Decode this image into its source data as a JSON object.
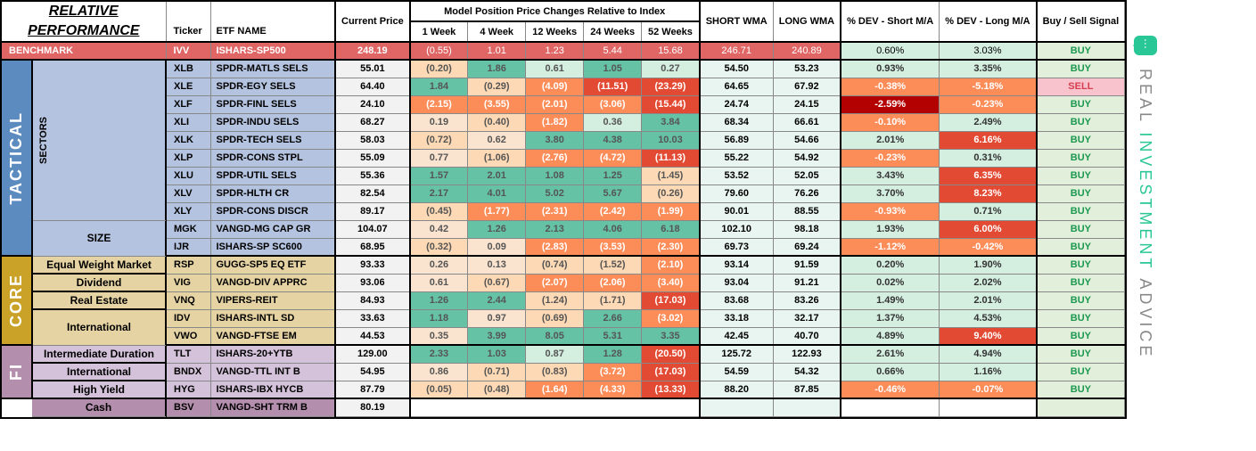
{
  "title": [
    "RELATIVE",
    "PERFORMANCE"
  ],
  "logo": {
    "text_gray": "REAL ",
    "text_green": "INVESTMENT",
    "text_gray2": " ADVICE"
  },
  "headers": {
    "ticker": "Ticker",
    "etf": "ETF NAME",
    "price": "Current Price",
    "model_span": "Model Position Price Changes Relative to Index",
    "w1": "1 Week",
    "w4": "4 Week",
    "w12": "12 Weeks",
    "w24": "24 Weeks",
    "w52": "52 Weeks",
    "swma": "SHORT WMA",
    "lwma": "LONG WMA",
    "devs": "% DEV - Short M/A",
    "devl": "% DEV - Long M/A",
    "sig": "Buy / Sell Signal"
  },
  "colors": {
    "bg_pos_strong": "#66c2a5",
    "bg_pos_mid": "#abdda4",
    "bg_pos_light": "#d4eee0",
    "bg_neg_light": "#fdd9b5",
    "bg_neg_mid": "#fc8d59",
    "bg_neg_strong": "#e34a33",
    "bg_neg_vstrong": "#b30000",
    "bg_neutral": "#fbe4cf",
    "bg_benchmark": "#e06666",
    "bg_sector_row": "#cfd8ea",
    "bg_sector_lbl": "#b4c3df",
    "bg_core_row": "#e6d3a3",
    "bg_core_lbl": "#c9a227",
    "bg_fi_row": "#d4c2da",
    "bg_fi_lbl": "#b48ead",
    "bg_cash": "#b48ead",
    "bg_wma": "#e8f5f0",
    "bg_price": "#f2f2f2",
    "bg_sig": "#e2efda",
    "bg_sig_sell": "#f8c3cc",
    "tactical": "#5b8bbf",
    "core": "#c9a227",
    "fi": "#b48ead"
  },
  "benchmark": {
    "label": "BENCHMARK",
    "ticker": "IVV",
    "name": "ISHARS-SP500",
    "price": "248.19",
    "w": [
      "(0.55)",
      "1.01",
      "1.23",
      "5.44",
      "15.68"
    ],
    "swma": "246.71",
    "lwma": "240.89",
    "devs": "0.60%",
    "devl": "3.03%",
    "sig": "BUY"
  },
  "sections": [
    {
      "id": "tactical",
      "label": "TACTICAL",
      "color": "#5b8bbf",
      "groups": [
        {
          "label": "SECTORS",
          "vertical": true,
          "bg": "#b4c3df",
          "rows": [
            {
              "ticker": "XLB",
              "name": "SPDR-MATLS SELS",
              "price": "55.01",
              "w": [
                [
                  "(0.20)",
                  "nL"
                ],
                [
                  "1.86",
                  "pS"
                ],
                [
                  "0.61",
                  "pL"
                ],
                [
                  "1.05",
                  "pS"
                ],
                [
                  "0.27",
                  "pL"
                ]
              ],
              "swma": "54.50",
              "lwma": "53.23",
              "devs": [
                "0.93%",
                "pL"
              ],
              "devl": [
                "3.35%",
                "pL"
              ],
              "sig": "BUY"
            },
            {
              "ticker": "XLE",
              "name": "SPDR-EGY SELS",
              "price": "64.40",
              "w": [
                [
                  "1.84",
                  "pS"
                ],
                [
                  "(0.29)",
                  "nL"
                ],
                [
                  "(4.09)",
                  "nM"
                ],
                [
                  "(11.51)",
                  "nS"
                ],
                [
                  "(23.29)",
                  "nS"
                ]
              ],
              "swma": "64.65",
              "lwma": "67.92",
              "devs": [
                "-0.38%",
                "nM"
              ],
              "devl": [
                "-5.18%",
                "nM"
              ],
              "sig": "SELL"
            },
            {
              "ticker": "XLF",
              "name": "SPDR-FINL SELS",
              "price": "24.10",
              "w": [
                [
                  "(2.15)",
                  "nM"
                ],
                [
                  "(3.55)",
                  "nM"
                ],
                [
                  "(2.01)",
                  "nM"
                ],
                [
                  "(3.06)",
                  "nM"
                ],
                [
                  "(15.44)",
                  "nS"
                ]
              ],
              "swma": "24.74",
              "lwma": "24.15",
              "devs": [
                "-2.59%",
                "nVS"
              ],
              "devl": [
                "-0.23%",
                "nM"
              ],
              "sig": "BUY"
            },
            {
              "ticker": "XLI",
              "name": "SPDR-INDU SELS",
              "price": "68.27",
              "w": [
                [
                  "0.19",
                  "nt"
                ],
                [
                  "(0.40)",
                  "nL"
                ],
                [
                  "(1.82)",
                  "nM"
                ],
                [
                  "0.36",
                  "pL"
                ],
                [
                  "3.84",
                  "pS"
                ]
              ],
              "swma": "68.34",
              "lwma": "66.61",
              "devs": [
                "-0.10%",
                "nM"
              ],
              "devl": [
                "2.49%",
                "pL"
              ],
              "sig": "BUY"
            },
            {
              "ticker": "XLK",
              "name": "SPDR-TECH SELS",
              "price": "58.03",
              "w": [
                [
                  "(0.72)",
                  "nL"
                ],
                [
                  "0.62",
                  "nt"
                ],
                [
                  "3.80",
                  "pS"
                ],
                [
                  "4.38",
                  "pS"
                ],
                [
                  "10.03",
                  "pS"
                ]
              ],
              "swma": "56.89",
              "lwma": "54.66",
              "devs": [
                "2.01%",
                "pL"
              ],
              "devl": [
                "6.16%",
                "nS"
              ],
              "sig": "BUY"
            },
            {
              "ticker": "XLP",
              "name": "SPDR-CONS STPL",
              "price": "55.09",
              "w": [
                [
                  "0.77",
                  "nt"
                ],
                [
                  "(1.06)",
                  "nL"
                ],
                [
                  "(2.76)",
                  "nM"
                ],
                [
                  "(4.72)",
                  "nM"
                ],
                [
                  "(11.13)",
                  "nS"
                ]
              ],
              "swma": "55.22",
              "lwma": "54.92",
              "devs": [
                "-0.23%",
                "nM"
              ],
              "devl": [
                "0.31%",
                "pL"
              ],
              "sig": "BUY"
            },
            {
              "ticker": "XLU",
              "name": "SPDR-UTIL SELS",
              "price": "55.36",
              "w": [
                [
                  "1.57",
                  "pS"
                ],
                [
                  "2.01",
                  "pS"
                ],
                [
                  "1.08",
                  "pS"
                ],
                [
                  "1.25",
                  "pS"
                ],
                [
                  "(1.45)",
                  "nL"
                ]
              ],
              "swma": "53.52",
              "lwma": "52.05",
              "devs": [
                "3.43%",
                "pL"
              ],
              "devl": [
                "6.35%",
                "nS"
              ],
              "sig": "BUY"
            },
            {
              "ticker": "XLV",
              "name": "SPDR-HLTH CR",
              "price": "82.54",
              "w": [
                [
                  "2.17",
                  "pS"
                ],
                [
                  "4.01",
                  "pS"
                ],
                [
                  "5.02",
                  "pS"
                ],
                [
                  "5.67",
                  "pS"
                ],
                [
                  "(0.26)",
                  "nL"
                ]
              ],
              "swma": "79.60",
              "lwma": "76.26",
              "devs": [
                "3.70%",
                "pL"
              ],
              "devl": [
                "8.23%",
                "nS"
              ],
              "sig": "BUY"
            },
            {
              "ticker": "XLY",
              "name": "SPDR-CONS DISCR",
              "price": "89.17",
              "w": [
                [
                  "(0.45)",
                  "nL"
                ],
                [
                  "(1.77)",
                  "nM"
                ],
                [
                  "(2.31)",
                  "nM"
                ],
                [
                  "(2.42)",
                  "nM"
                ],
                [
                  "(1.99)",
                  "nM"
                ]
              ],
              "swma": "90.01",
              "lwma": "88.55",
              "devs": [
                "-0.93%",
                "nM"
              ],
              "devl": [
                "0.71%",
                "pL"
              ],
              "sig": "BUY"
            }
          ]
        },
        {
          "label": "SIZE",
          "bg": "#b4c3df",
          "rows": [
            {
              "ticker": "MGK",
              "name": "VANGD-MG CAP GR",
              "price": "104.07",
              "w": [
                [
                  "0.42",
                  "nt"
                ],
                [
                  "1.26",
                  "pS"
                ],
                [
                  "2.13",
                  "pS"
                ],
                [
                  "4.06",
                  "pS"
                ],
                [
                  "6.18",
                  "pS"
                ]
              ],
              "swma": "102.10",
              "lwma": "98.18",
              "devs": [
                "1.93%",
                "pL"
              ],
              "devl": [
                "6.00%",
                "nS"
              ],
              "sig": "BUY"
            },
            {
              "ticker": "IJR",
              "name": "ISHARS-SP SC600",
              "price": "68.95",
              "w": [
                [
                  "(0.32)",
                  "nL"
                ],
                [
                  "0.09",
                  "nt"
                ],
                [
                  "(2.83)",
                  "nM"
                ],
                [
                  "(3.53)",
                  "nM"
                ],
                [
                  "(2.30)",
                  "nM"
                ]
              ],
              "swma": "69.73",
              "lwma": "69.24",
              "devs": [
                "-1.12%",
                "nM"
              ],
              "devl": [
                "-0.42%",
                "nM"
              ],
              "sig": "BUY"
            }
          ]
        }
      ]
    },
    {
      "id": "core",
      "label": "CORE",
      "color": "#c9a227",
      "groups": [
        {
          "label": "Equal Weight Market",
          "bg": "#e6d3a3",
          "rows": [
            {
              "ticker": "RSP",
              "name": "GUGG-SP5 EQ ETF",
              "price": "93.33",
              "w": [
                [
                  "0.26",
                  "nt"
                ],
                [
                  "0.13",
                  "nt"
                ],
                [
                  "(0.74)",
                  "nL"
                ],
                [
                  "(1.52)",
                  "nL"
                ],
                [
                  "(2.10)",
                  "nM"
                ]
              ],
              "swma": "93.14",
              "lwma": "91.59",
              "devs": [
                "0.20%",
                "pL"
              ],
              "devl": [
                "1.90%",
                "pL"
              ],
              "sig": "BUY"
            }
          ]
        },
        {
          "label": "Dividend",
          "bg": "#e6d3a3",
          "rows": [
            {
              "ticker": "VIG",
              "name": "VANGD-DIV APPRC",
              "price": "93.06",
              "w": [
                [
                  "0.61",
                  "nt"
                ],
                [
                  "(0.67)",
                  "nL"
                ],
                [
                  "(2.07)",
                  "nM"
                ],
                [
                  "(2.06)",
                  "nM"
                ],
                [
                  "(3.40)",
                  "nM"
                ]
              ],
              "swma": "93.04",
              "lwma": "91.21",
              "devs": [
                "0.02%",
                "pL"
              ],
              "devl": [
                "2.02%",
                "pL"
              ],
              "sig": "BUY"
            }
          ]
        },
        {
          "label": "Real Estate",
          "bg": "#e6d3a3",
          "rows": [
            {
              "ticker": "VNQ",
              "name": "VIPERS-REIT",
              "price": "84.93",
              "w": [
                [
                  "1.26",
                  "pS"
                ],
                [
                  "2.44",
                  "pS"
                ],
                [
                  "(1.24)",
                  "nL"
                ],
                [
                  "(1.71)",
                  "nL"
                ],
                [
                  "(17.03)",
                  "nS"
                ]
              ],
              "swma": "83.68",
              "lwma": "83.26",
              "devs": [
                "1.49%",
                "pL"
              ],
              "devl": [
                "2.01%",
                "pL"
              ],
              "sig": "BUY"
            }
          ]
        },
        {
          "label": "International",
          "bg": "#e6d3a3",
          "rows": [
            {
              "ticker": "IDV",
              "name": "ISHARS-INTL SD",
              "price": "33.63",
              "w": [
                [
                  "1.18",
                  "pS"
                ],
                [
                  "0.97",
                  "nt"
                ],
                [
                  "(0.69)",
                  "nL"
                ],
                [
                  "2.66",
                  "pS"
                ],
                [
                  "(3.02)",
                  "nM"
                ]
              ],
              "swma": "33.18",
              "lwma": "32.17",
              "devs": [
                "1.37%",
                "pL"
              ],
              "devl": [
                "4.53%",
                "pL"
              ],
              "sig": "BUY"
            },
            {
              "ticker": "VWO",
              "name": "VANGD-FTSE EM",
              "price": "44.53",
              "w": [
                [
                  "0.35",
                  "nt"
                ],
                [
                  "3.99",
                  "pS"
                ],
                [
                  "8.05",
                  "pS"
                ],
                [
                  "5.31",
                  "pS"
                ],
                [
                  "3.35",
                  "pS"
                ]
              ],
              "swma": "42.45",
              "lwma": "40.70",
              "devs": [
                "4.89%",
                "pL"
              ],
              "devl": [
                "9.40%",
                "nS"
              ],
              "sig": "BUY"
            }
          ]
        }
      ]
    },
    {
      "id": "fi",
      "label": "FI",
      "color": "#b48ead",
      "groups": [
        {
          "label": "Intermediate Duration",
          "bg": "#d4c2da",
          "rows": [
            {
              "ticker": "TLT",
              "name": "ISHARS-20+YTB",
              "price": "129.00",
              "w": [
                [
                  "2.33",
                  "pS"
                ],
                [
                  "1.03",
                  "pS"
                ],
                [
                  "0.87",
                  "pL"
                ],
                [
                  "1.28",
                  "pS"
                ],
                [
                  "(20.50)",
                  "nS"
                ]
              ],
              "swma": "125.72",
              "lwma": "122.93",
              "devs": [
                "2.61%",
                "pL"
              ],
              "devl": [
                "4.94%",
                "pL"
              ],
              "sig": "BUY"
            }
          ]
        },
        {
          "label": "International",
          "bg": "#d4c2da",
          "rows": [
            {
              "ticker": "BNDX",
              "name": "VANGD-TTL INT B",
              "price": "54.95",
              "w": [
                [
                  "0.86",
                  "nt"
                ],
                [
                  "(0.71)",
                  "nL"
                ],
                [
                  "(0.83)",
                  "nL"
                ],
                [
                  "(3.72)",
                  "nM"
                ],
                [
                  "(17.03)",
                  "nS"
                ]
              ],
              "swma": "54.59",
              "lwma": "54.32",
              "devs": [
                "0.66%",
                "pL"
              ],
              "devl": [
                "1.16%",
                "pL"
              ],
              "sig": "BUY"
            }
          ]
        },
        {
          "label": "High Yield",
          "bg": "#d4c2da",
          "rows": [
            {
              "ticker": "HYG",
              "name": "ISHARS-IBX HYCB",
              "price": "87.79",
              "w": [
                [
                  "(0.05)",
                  "nL"
                ],
                [
                  "(0.48)",
                  "nL"
                ],
                [
                  "(1.64)",
                  "nM"
                ],
                [
                  "(4.33)",
                  "nM"
                ],
                [
                  "(13.33)",
                  "nS"
                ]
              ],
              "swma": "88.20",
              "lwma": "87.85",
              "devs": [
                "-0.46%",
                "nM"
              ],
              "devl": [
                "-0.07%",
                "nM"
              ],
              "sig": "BUY"
            }
          ]
        }
      ]
    }
  ],
  "cash": {
    "label": "Cash",
    "ticker": "BSV",
    "name": "VANGD-SHT TRM B",
    "price": "80.19"
  }
}
